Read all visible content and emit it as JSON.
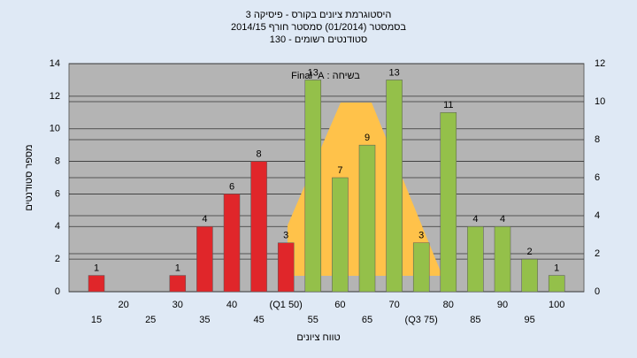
{
  "chart_data": {
    "type": "bar",
    "title": "היסטוגרמת ציונים בקורס - פיסיקה 3",
    "subtitle": [
      "בסמסטר  (01/2014)  סמסטר חורף  2014/15",
      "סטודנטים רשומים - 130"
    ],
    "annotation": "בשיחה : Final_A",
    "y_label": "מספר סטודנטים",
    "x_label": "טווח ציונים",
    "categories": [
      "15",
      "20",
      "25",
      "30",
      "35",
      "40",
      "45",
      "(Q1 50)",
      "55",
      "60",
      "65",
      "70",
      "(Q3 75)",
      "80",
      "85",
      "90",
      "95",
      "100"
    ],
    "values": [
      1,
      0,
      0,
      1,
      4,
      6,
      8,
      3,
      13,
      7,
      9,
      13,
      3,
      11,
      4,
      4,
      2,
      1
    ],
    "colors": [
      "#e0262a",
      "#e0262a",
      "#e0262a",
      "#e0262a",
      "#e0262a",
      "#e0262a",
      "#e0262a",
      "#e0262a",
      "#94c04a",
      "#94c04a",
      "#94c04a",
      "#94c04a",
      "#94c04a",
      "#94c04a",
      "#94c04a",
      "#94c04a",
      "#94c04a",
      "#94c04a"
    ],
    "ylim": [
      0,
      14
    ],
    "yticks": [
      0,
      2,
      4,
      6,
      8,
      10,
      12,
      14
    ],
    "y2lim": [
      0,
      12
    ],
    "y2ticks": [
      0,
      2,
      4,
      6,
      8,
      10,
      12
    ],
    "grid": true
  }
}
